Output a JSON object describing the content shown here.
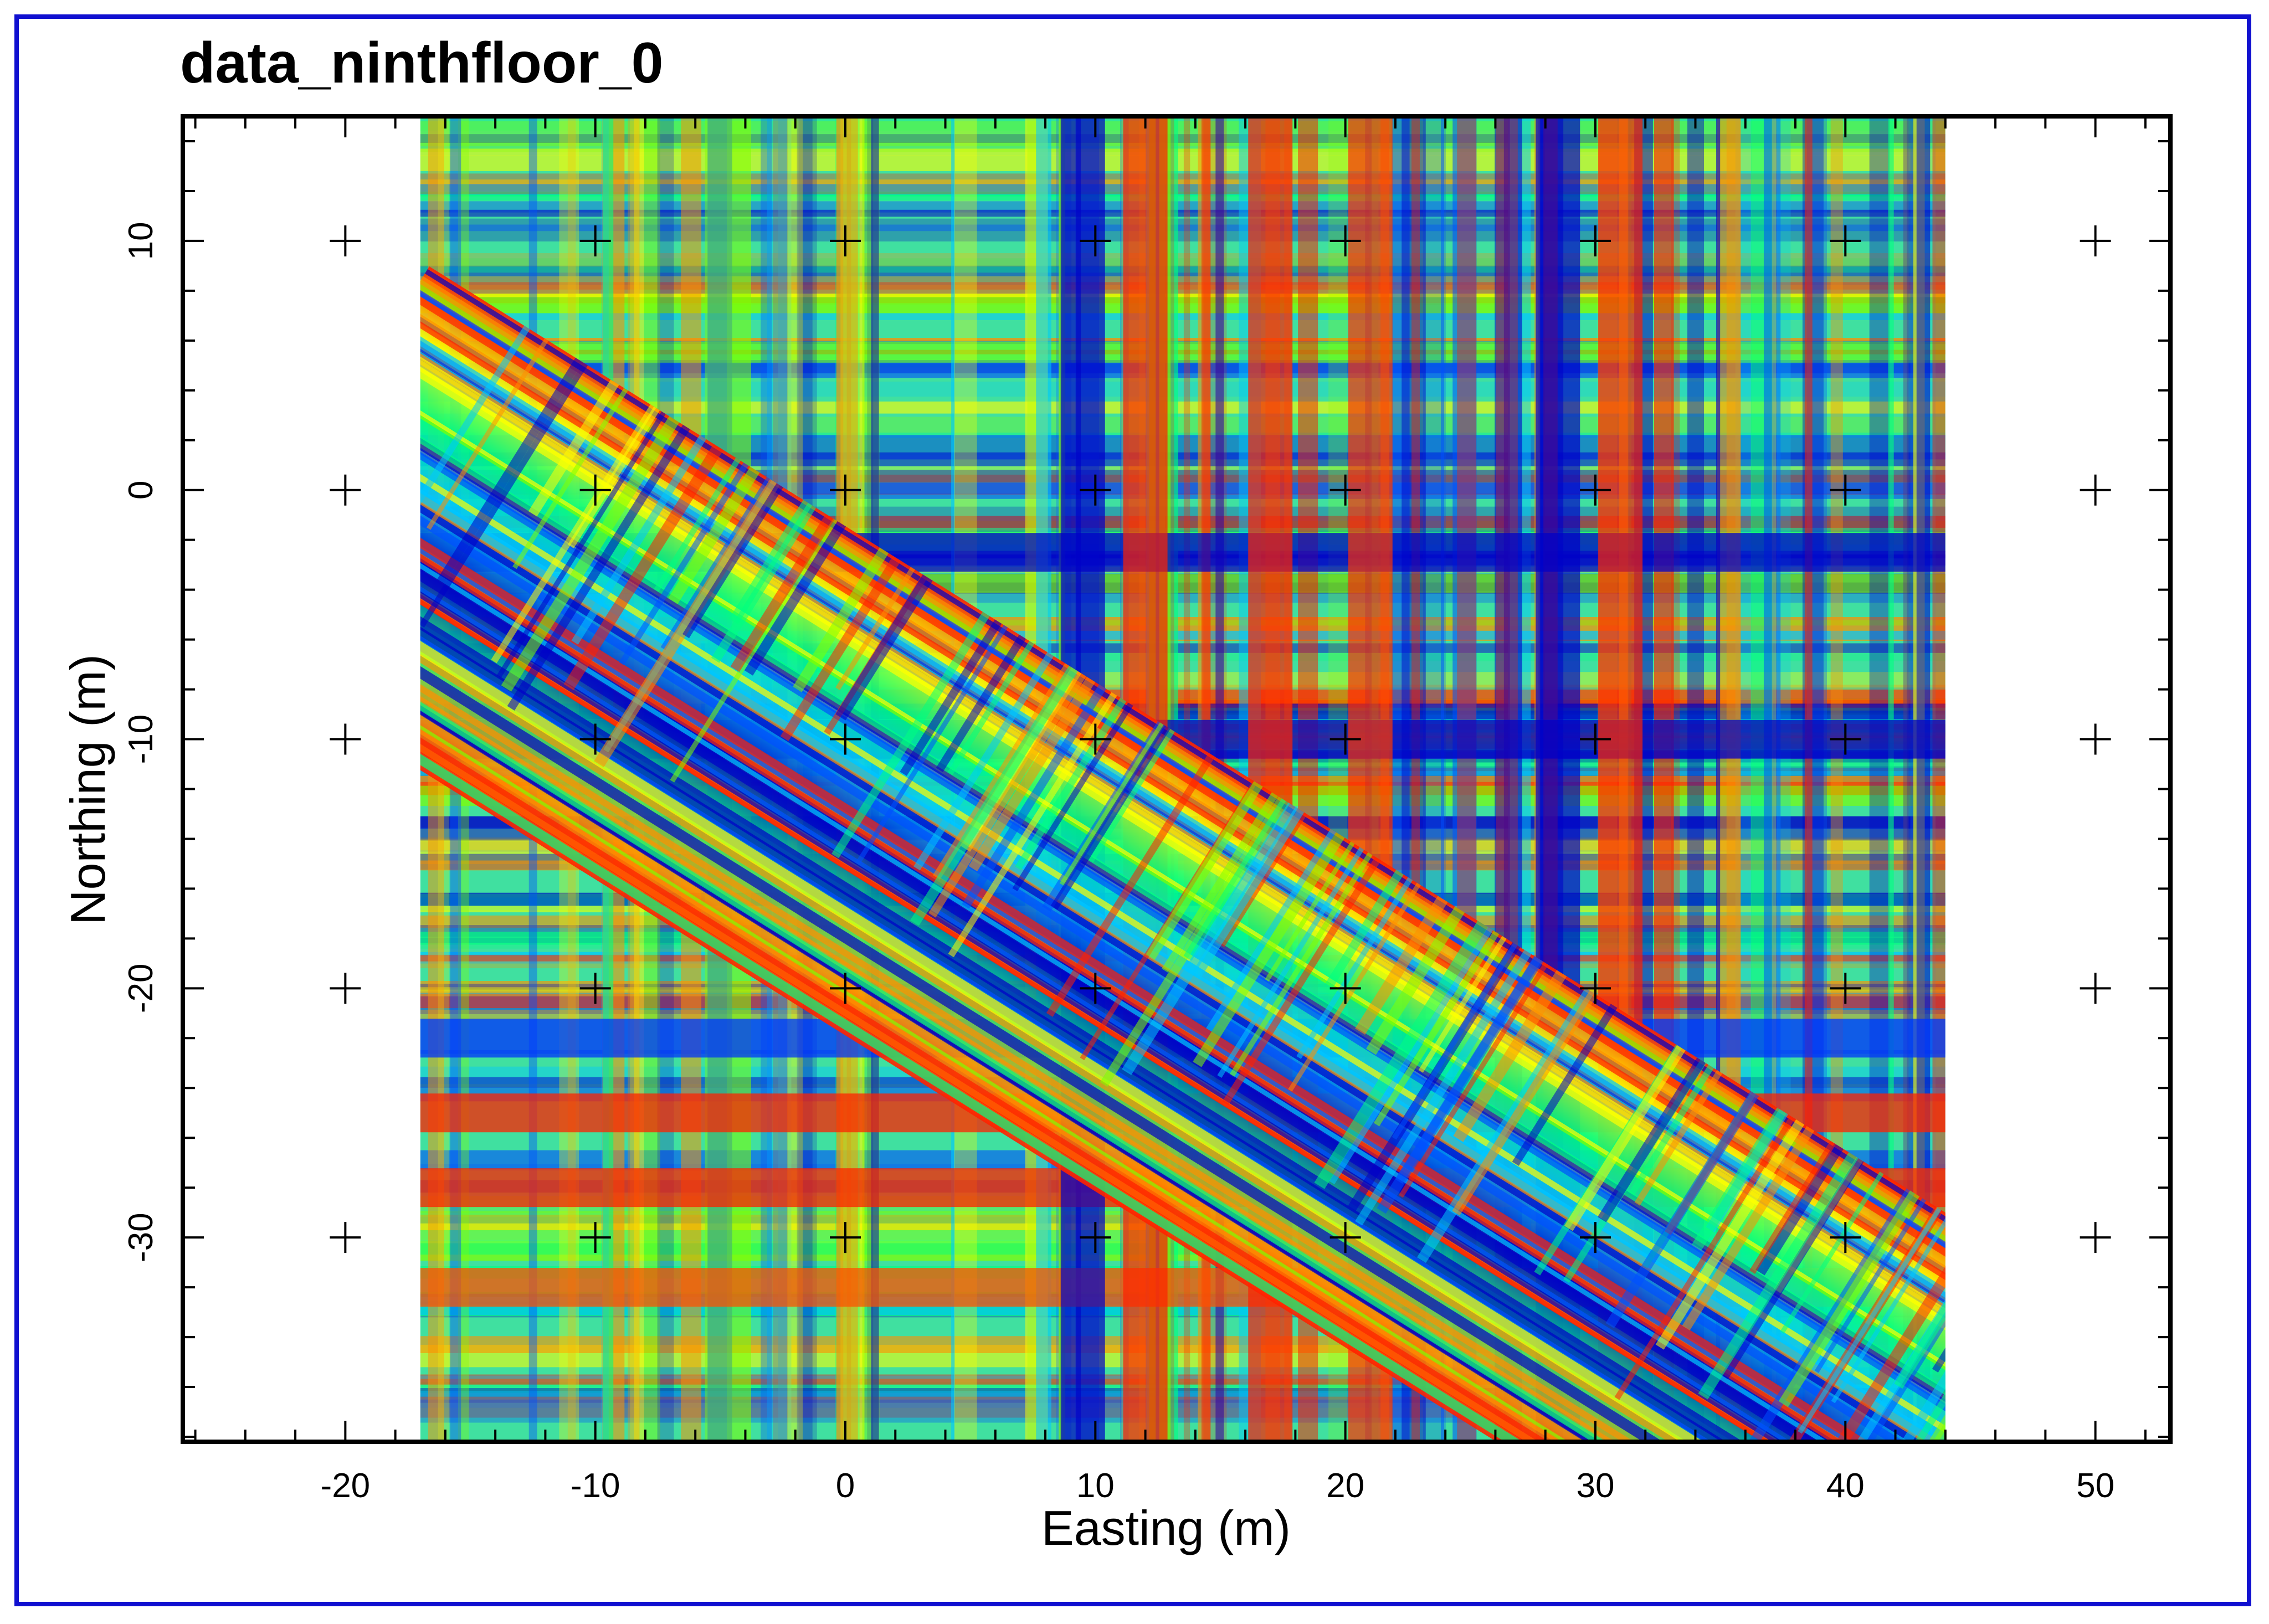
{
  "chart_data": {
    "type": "heatmap",
    "title": "data_ninthfloor_0",
    "xlabel": "Easting (m)",
    "ylabel": "Northing (m)",
    "xlim": [
      -26.5,
      53.0
    ],
    "ylim": [
      -38.2,
      15.0
    ],
    "x_ticks": [
      -20,
      -10,
      0,
      10,
      20,
      30,
      40,
      50
    ],
    "y_ticks": [
      10,
      0,
      -10,
      -20,
      -30
    ],
    "x_tick_labels": [
      "-20",
      "-10",
      "0",
      "10",
      "20",
      "30",
      "40",
      "50"
    ],
    "y_tick_labels": [
      "10",
      "0",
      "-10",
      "-20",
      "-30"
    ],
    "data_extent": {
      "x": [
        -17.0,
        44.0
      ],
      "y": [
        -38.2,
        15.0
      ]
    },
    "grid": "crosshair markers at major tick intersections",
    "colormap": [
      "#0000c8",
      "#0050ff",
      "#00c8ff",
      "#00ff80",
      "#80ff00",
      "#ffff00",
      "#ff9000",
      "#ff2000"
    ],
    "features": {
      "diagonal_band": {
        "from": [
          -17.0,
          0.0
        ],
        "to": [
          44.0,
          -38.2
        ]
      },
      "horizontal_bands": [
        -22.0,
        -25.0,
        -28.0,
        -32.0,
        -10.0,
        -2.5
      ],
      "vertical_bands": [
        9.5,
        12.0,
        17.0,
        21.0,
        28.5,
        31.0
      ]
    }
  }
}
